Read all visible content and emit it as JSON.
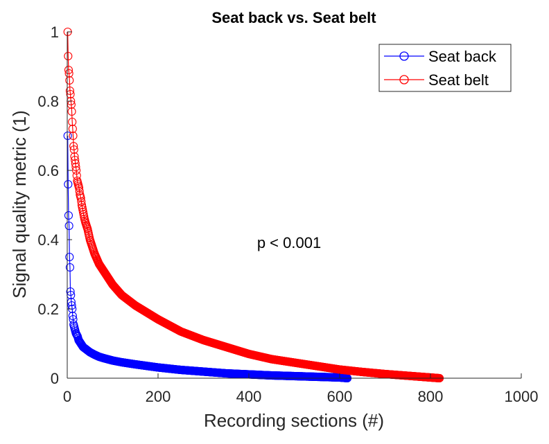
{
  "chart_data": {
    "type": "scatter",
    "title": "Seat back vs. Seat belt",
    "xlabel": "Recording sections (#)",
    "ylabel": "Signal quality metric (1)",
    "xlim": [
      0,
      1000
    ],
    "ylim": [
      0,
      1
    ],
    "xticks": [
      "0",
      "200",
      "400",
      "600",
      "800",
      "1000"
    ],
    "yticks": [
      "0",
      "0.2",
      "0.4",
      "0.6",
      "0.8",
      "1"
    ],
    "grid": false,
    "legend_position": "top-right",
    "annotation": "p < 0.001",
    "series": [
      {
        "name": "Seat back",
        "color": "#0000ff",
        "marker": "circle",
        "count": 617,
        "x": [
          1,
          2,
          3,
          4,
          5,
          6,
          7,
          8,
          9,
          10,
          11,
          12,
          13,
          14,
          15,
          17,
          19,
          21,
          23,
          25,
          30,
          35,
          40,
          50,
          60,
          70,
          80,
          100,
          120,
          150,
          200,
          250,
          300,
          350,
          400,
          450,
          500,
          550,
          600,
          617
        ],
        "y": [
          0.7,
          0.56,
          0.47,
          0.44,
          0.35,
          0.32,
          0.25,
          0.24,
          0.22,
          0.21,
          0.2,
          0.18,
          0.17,
          0.155,
          0.15,
          0.14,
          0.13,
          0.125,
          0.12,
          0.11,
          0.1,
          0.09,
          0.085,
          0.075,
          0.068,
          0.062,
          0.058,
          0.051,
          0.046,
          0.04,
          0.031,
          0.024,
          0.019,
          0.014,
          0.011,
          0.008,
          0.006,
          0.004,
          0.002,
          0.0
        ]
      },
      {
        "name": "Seat belt",
        "color": "#ff0000",
        "marker": "circle",
        "count": 820,
        "x": [
          1,
          2,
          3,
          4,
          5,
          6,
          7,
          8,
          9,
          10,
          11,
          12,
          13,
          14,
          15,
          16,
          18,
          20,
          22,
          24,
          26,
          28,
          30,
          32,
          35,
          38,
          40,
          45,
          50,
          55,
          60,
          70,
          80,
          90,
          100,
          120,
          150,
          200,
          250,
          300,
          350,
          400,
          450,
          500,
          550,
          600,
          650,
          700,
          750,
          800,
          820
        ],
        "y": [
          1.0,
          0.93,
          0.89,
          0.88,
          0.86,
          0.83,
          0.82,
          0.8,
          0.79,
          0.77,
          0.74,
          0.72,
          0.7,
          0.67,
          0.66,
          0.64,
          0.62,
          0.6,
          0.57,
          0.56,
          0.55,
          0.53,
          0.52,
          0.5,
          0.48,
          0.46,
          0.45,
          0.43,
          0.4,
          0.38,
          0.36,
          0.33,
          0.31,
          0.29,
          0.27,
          0.24,
          0.21,
          0.17,
          0.135,
          0.11,
          0.09,
          0.07,
          0.055,
          0.045,
          0.035,
          0.025,
          0.018,
          0.012,
          0.007,
          0.002,
          0.0
        ]
      }
    ]
  }
}
